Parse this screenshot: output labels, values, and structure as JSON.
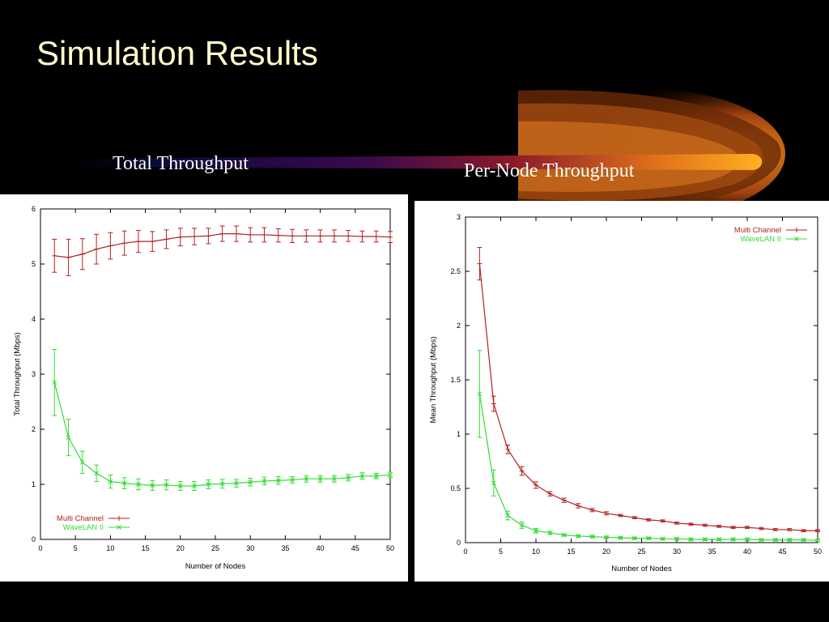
{
  "slide": {
    "title": "Simulation Results",
    "subtitle_left": "Total Throughput",
    "subtitle_right": "Per-Node Throughput"
  },
  "colors": {
    "background": "#000000",
    "title": "#ffffcc",
    "multi_channel": "#b22222",
    "wavelan": "#33dd33"
  },
  "chart_data": [
    {
      "type": "line",
      "title": "",
      "xlabel": "Number of Nodes",
      "ylabel": "Total Throughput (Mbps)",
      "xlim": [
        0,
        50
      ],
      "ylim": [
        0,
        6
      ],
      "xticks": [
        0,
        5,
        10,
        15,
        20,
        25,
        30,
        35,
        40,
        45,
        50
      ],
      "yticks": [
        0,
        1,
        2,
        3,
        4,
        5,
        6
      ],
      "legend_position": "bottom-left",
      "x": [
        2,
        4,
        6,
        8,
        10,
        12,
        14,
        16,
        18,
        20,
        22,
        24,
        26,
        28,
        30,
        32,
        34,
        36,
        38,
        40,
        42,
        44,
        46,
        48,
        50
      ],
      "series": [
        {
          "name": "Multi Channel",
          "color": "#b22222",
          "values": [
            5.15,
            5.12,
            5.18,
            5.27,
            5.33,
            5.38,
            5.41,
            5.41,
            5.45,
            5.49,
            5.5,
            5.51,
            5.55,
            5.55,
            5.53,
            5.53,
            5.52,
            5.51,
            5.51,
            5.51,
            5.51,
            5.51,
            5.5,
            5.5,
            5.49
          ],
          "errors": [
            0.3,
            0.33,
            0.28,
            0.27,
            0.24,
            0.22,
            0.2,
            0.18,
            0.17,
            0.16,
            0.15,
            0.14,
            0.14,
            0.14,
            0.13,
            0.13,
            0.12,
            0.12,
            0.11,
            0.11,
            0.11,
            0.1,
            0.1,
            0.1,
            0.1
          ]
        },
        {
          "name": "WaveLAN II",
          "color": "#33dd33",
          "values": [
            2.85,
            1.85,
            1.4,
            1.2,
            1.05,
            1.02,
            1.0,
            0.98,
            0.99,
            0.97,
            0.97,
            1.0,
            1.01,
            1.02,
            1.04,
            1.06,
            1.07,
            1.08,
            1.1,
            1.1,
            1.1,
            1.12,
            1.15,
            1.15,
            1.17
          ],
          "errors": [
            0.6,
            0.33,
            0.2,
            0.15,
            0.12,
            0.1,
            0.1,
            0.09,
            0.09,
            0.08,
            0.08,
            0.08,
            0.08,
            0.07,
            0.07,
            0.07,
            0.07,
            0.06,
            0.06,
            0.06,
            0.06,
            0.06,
            0.06,
            0.05,
            0.05
          ]
        }
      ]
    },
    {
      "type": "line",
      "title": "",
      "xlabel": "Number of Nodes",
      "ylabel": "Mean Throughput (Mbps)",
      "xlim": [
        0,
        50
      ],
      "ylim": [
        0,
        3
      ],
      "xticks": [
        0,
        5,
        10,
        15,
        20,
        25,
        30,
        35,
        40,
        45,
        50
      ],
      "yticks": [
        0,
        0.5,
        1,
        1.5,
        2,
        2.5,
        3
      ],
      "ytick_labels": [
        "0",
        "0.5",
        "1",
        "1.5",
        "2",
        "2.5",
        "3"
      ],
      "legend_position": "top-right",
      "x": [
        2,
        4,
        6,
        8,
        10,
        12,
        14,
        16,
        18,
        20,
        22,
        24,
        26,
        28,
        30,
        32,
        34,
        36,
        38,
        40,
        42,
        44,
        46,
        48,
        50
      ],
      "series": [
        {
          "name": "Multi Channel",
          "color": "#b22222",
          "values": [
            2.57,
            1.28,
            0.86,
            0.66,
            0.53,
            0.45,
            0.39,
            0.34,
            0.3,
            0.27,
            0.25,
            0.23,
            0.21,
            0.2,
            0.18,
            0.17,
            0.16,
            0.15,
            0.14,
            0.14,
            0.13,
            0.12,
            0.12,
            0.11,
            0.11
          ],
          "errors": [
            0.15,
            0.07,
            0.04,
            0.04,
            0.03,
            0.02,
            0.02,
            0.02,
            0.015,
            0.015,
            0.01,
            0.01,
            0.01,
            0.01,
            0.01,
            0.01,
            0.01,
            0.01,
            0.01,
            0.01,
            0.01,
            0.01,
            0.01,
            0.01,
            0.01
          ]
        },
        {
          "name": "WaveLAN II",
          "color": "#33dd33",
          "values": [
            1.37,
            0.55,
            0.25,
            0.16,
            0.11,
            0.09,
            0.07,
            0.06,
            0.055,
            0.05,
            0.045,
            0.04,
            0.04,
            0.035,
            0.035,
            0.03,
            0.03,
            0.03,
            0.03,
            0.03,
            0.025,
            0.025,
            0.025,
            0.025,
            0.02
          ],
          "errors": [
            0.4,
            0.12,
            0.04,
            0.03,
            0.02,
            0.015,
            0.01,
            0.01,
            0.01,
            0.01,
            0.01,
            0.01,
            0.01,
            0.01,
            0.01,
            0.01,
            0.01,
            0.01,
            0.01,
            0.01,
            0.01,
            0.01,
            0.01,
            0.01,
            0.01
          ]
        }
      ]
    }
  ]
}
